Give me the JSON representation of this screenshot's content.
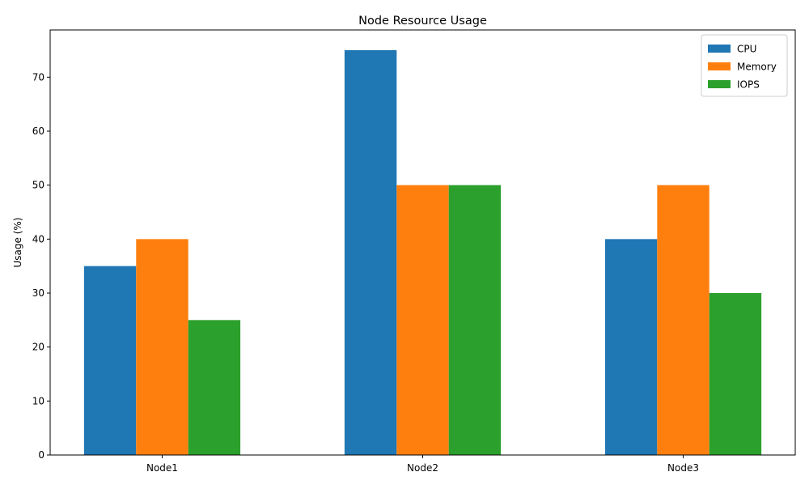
{
  "chart_data": {
    "type": "bar",
    "title": "Node Resource Usage",
    "xlabel": "",
    "ylabel": "Usage (%)",
    "categories": [
      "Node1",
      "Node2",
      "Node3"
    ],
    "series": [
      {
        "name": "CPU",
        "values": [
          35,
          75,
          40
        ],
        "color": "#1f77b4"
      },
      {
        "name": "Memory",
        "values": [
          40,
          50,
          50
        ],
        "color": "#ff7f0e"
      },
      {
        "name": "IOPS",
        "values": [
          25,
          50,
          30
        ],
        "color": "#2ca02c"
      }
    ],
    "ylim": [
      0,
      78.75
    ],
    "yticks": [
      0,
      10,
      20,
      30,
      40,
      50,
      60,
      70
    ],
    "grid": false,
    "legend_position": "top-right"
  }
}
